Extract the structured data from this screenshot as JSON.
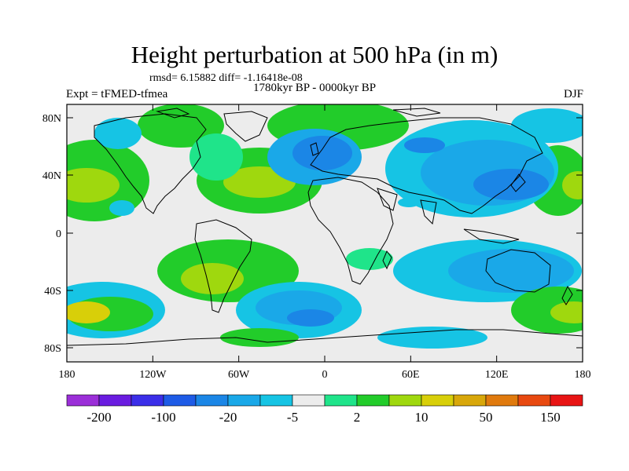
{
  "title": "Height perturbation at 500 hPa (in m)",
  "stats": "rmsd= 6.15882 diff= -1.16418e-08",
  "experiment": "Expt = tFMED-tfmea",
  "period": "1780kyr BP - 0000kyr BP",
  "season": "DJF",
  "lat_ticks": [
    "80N",
    "40N",
    "0",
    "40S",
    "80S"
  ],
  "lon_ticks": [
    "180",
    "120W",
    "60W",
    "0",
    "60E",
    "120E",
    "180"
  ],
  "colorbar": {
    "labels": [
      "-200",
      "-100",
      "-20",
      "-5",
      "2",
      "10",
      "50",
      "150"
    ],
    "colors": [
      "#9b2fd8",
      "#6a1ce0",
      "#3b2ee8",
      "#1e5be6",
      "#1b86e6",
      "#1aa8e8",
      "#16c4e4",
      "#ececec",
      "#1fe48a",
      "#22cc2a",
      "#9fd80e",
      "#d8cf09",
      "#d8a70a",
      "#e07a0d",
      "#e84910",
      "#e81414"
    ]
  },
  "colors": {
    "background": "#ececec",
    "coast": "#000000"
  }
}
